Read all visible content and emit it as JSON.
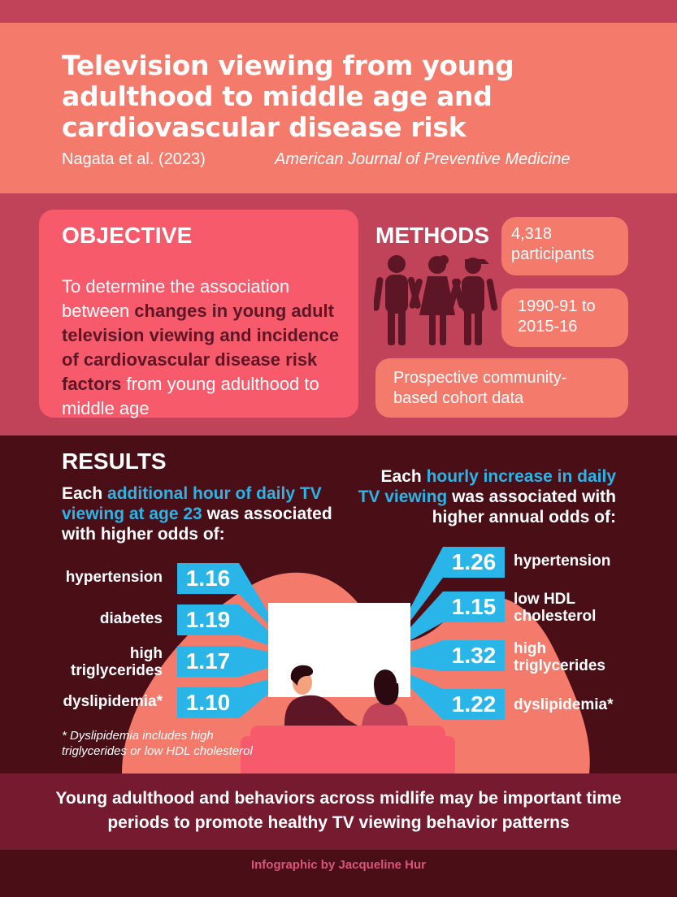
{
  "header": {
    "title": "Television viewing from young adulthood to middle age and cardiovascular disease risk",
    "authors": "Nagata et al. (2023)",
    "journal": "American Journal of Preventive Medicine"
  },
  "objective": {
    "heading": "OBJECTIVE",
    "text_before": "To determine the association between ",
    "text_highlight": "changes in young adult television viewing and incidence of cardiovascular disease risk factors",
    "text_after": " from young adulthood to middle age"
  },
  "methods": {
    "heading": "METHODS",
    "participants": "4,318 participants",
    "years": "1990-91 to 2015-16",
    "design": "Prospective community-based cohort data",
    "icon": "people-group-icon"
  },
  "results": {
    "heading": "RESULTS",
    "left": {
      "lead_before": "Each ",
      "lead_highlight": "additional hour of daily TV viewing at age 23",
      "lead_after": " was associated with higher odds of:",
      "items": [
        {
          "label": "hypertension",
          "value": "1.16"
        },
        {
          "label": "diabetes",
          "value": "1.19"
        },
        {
          "label": "high triglycerides",
          "value": "1.17"
        },
        {
          "label": "dyslipidemia*",
          "value": "1.10"
        }
      ]
    },
    "right": {
      "lead_before": "Each ",
      "lead_highlight": "hourly increase in daily TV viewing",
      "lead_after": " was associated with higher annual odds of:",
      "items": [
        {
          "label": "hypertension",
          "value": "1.26"
        },
        {
          "label": "low HDL cholesterol",
          "value": "1.15"
        },
        {
          "label": "high triglycerides",
          "value": "1.32"
        },
        {
          "label": "dyslipidemia*",
          "value": "1.22"
        }
      ]
    },
    "footnote": "* Dyslipidemia includes high triglycerides or low HDL cholesterol"
  },
  "conclusion": "Young adulthood and behaviors across midlife may be important time periods to promote healthy TV viewing behavior patterns",
  "credit": "Infographic by Jacqueline Hur",
  "colors": {
    "header_bg": "#f47a6c",
    "main_bg": "#c1435a",
    "objective_bg": "#f65a6b",
    "results_bg": "#4a0e17",
    "accent_blue": "#2ab5e9",
    "highlight_dark": "#5d1626",
    "conclusion_bg": "#761a30"
  }
}
